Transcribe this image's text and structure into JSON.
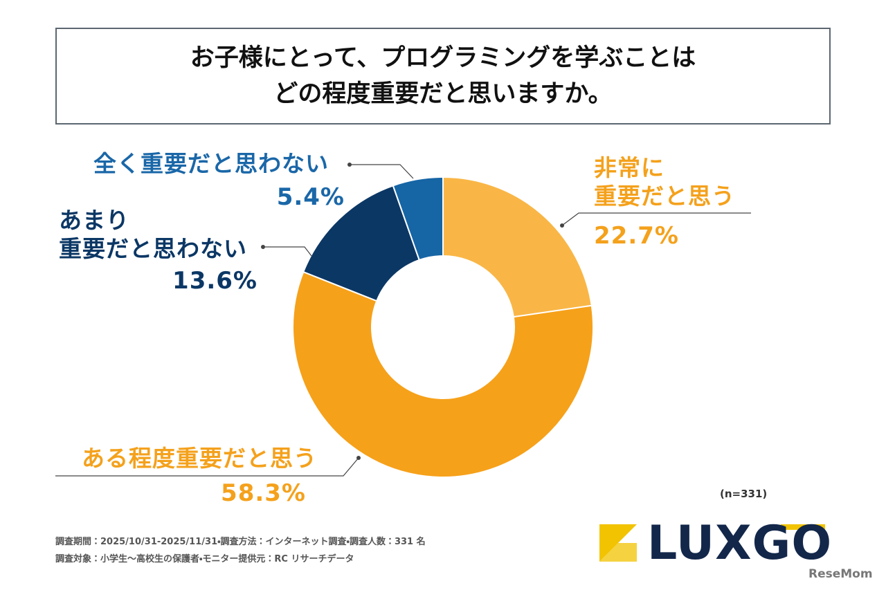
{
  "title": "お子様にとって、プログラミングを学ぶことは\nどの程度重要だと思いますか。",
  "chart_data": {
    "type": "pie",
    "donut": true,
    "categories": [
      "非常に\n重要だと思う",
      "ある程度重要だと思う",
      "あまり\n重要だと思わない",
      "全く重要だと思わない"
    ],
    "values": [
      22.7,
      58.3,
      13.6,
      5.4
    ],
    "value_labels": [
      "22.7%",
      "58.3%",
      "13.6%",
      "5.4%"
    ],
    "colors": [
      "#F9B646",
      "#F6A11A",
      "#0B3765",
      "#1665A5"
    ]
  },
  "sample_size": "(n=331)",
  "notes": [
    "調査期間：2025/10/31-2025/11/31・調査方法：インターネット調査・調査人数：331 名",
    "調査対象：小学生〜高校生の保護者・モニター提供元：RC リサーチデータ"
  ],
  "logo": "LUXGO",
  "watermark": "ReseMom"
}
